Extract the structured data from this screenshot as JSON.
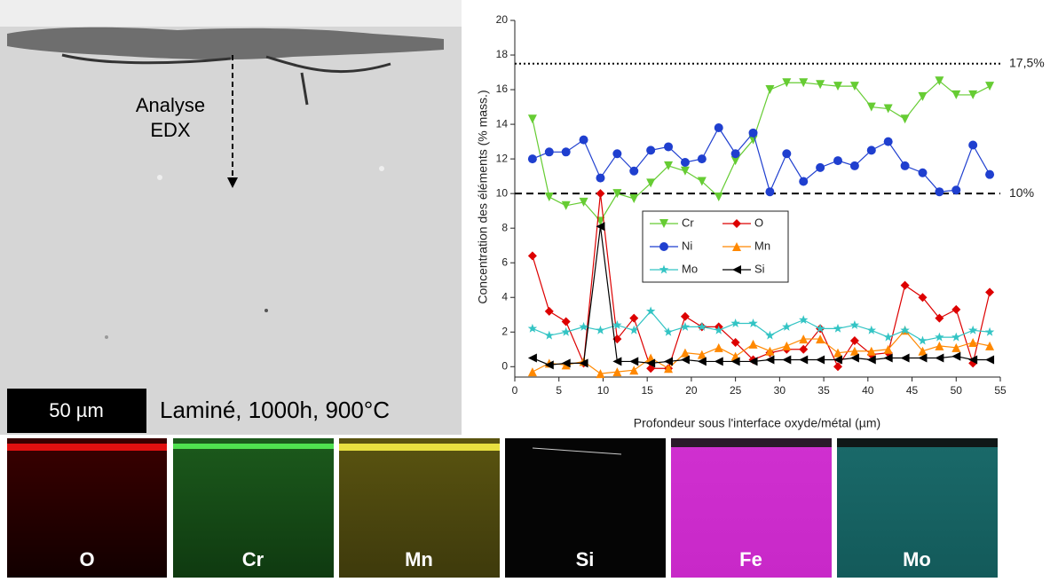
{
  "image": {
    "annotation": [
      "Analyse",
      "EDX"
    ],
    "scale_bar": "50 µm",
    "caption": "Laminé, 1000h, 900°C"
  },
  "maps": [
    "O",
    "Cr",
    "Mn",
    "Si",
    "Fe",
    "Mo"
  ],
  "chart_data": {
    "type": "line",
    "xlabel": "Profondeur sous l'interface oxyde/métal (µm)",
    "ylabel": "Concentration des éléments (% mass.)",
    "x": [
      2,
      3.9,
      5.8,
      7.8,
      9.7,
      11.6,
      13.5,
      15.4,
      17.4,
      19.3,
      21.2,
      23.1,
      25,
      27,
      28.9,
      30.8,
      32.7,
      34.6,
      36.6,
      38.5,
      40.4,
      42.3,
      44.2,
      46.2,
      48.1,
      50,
      51.9,
      53.8
    ],
    "series": [
      {
        "name": "Cr",
        "color": "#66cc33",
        "marker": "triangle-down",
        "values": [
          14.3,
          9.8,
          9.3,
          9.5,
          8.4,
          10,
          9.7,
          10.6,
          11.6,
          11.3,
          10.7,
          9.8,
          11.9,
          13.1,
          16,
          16.4,
          16.4,
          16.3,
          16.2,
          16.2,
          15,
          14.9,
          14.3,
          15.6,
          16.5,
          15.7,
          15.7,
          16.2
        ]
      },
      {
        "name": "O",
        "color": "#dd0000",
        "marker": "diamond",
        "values": [
          6.4,
          3.2,
          2.6,
          0.2,
          10,
          1.6,
          2.8,
          -0.1,
          -0.1,
          2.9,
          2.3,
          2.3,
          1.4,
          0.4,
          0.8,
          1,
          1,
          2.2,
          0,
          1.5,
          0.7,
          0.8,
          4.7,
          4,
          2.8,
          3.3,
          0.2,
          4.3
        ]
      },
      {
        "name": "Ni",
        "color": "#1f3fcf",
        "marker": "circle",
        "values": [
          12,
          12.4,
          12.4,
          13.1,
          10.9,
          12.3,
          11.3,
          12.5,
          12.7,
          11.8,
          12,
          13.8,
          12.3,
          13.5,
          10.1,
          12.3,
          10.7,
          11.5,
          11.9,
          11.6,
          12.5,
          13,
          11.6,
          11.2,
          10.1,
          10.2,
          12.8,
          11.1
        ]
      },
      {
        "name": "Mn",
        "color": "#ff8800",
        "marker": "triangle-up",
        "values": [
          -0.3,
          0.2,
          0.1,
          0.3,
          -0.4,
          -0.3,
          -0.2,
          0.5,
          -0.1,
          0.8,
          0.7,
          1.1,
          0.6,
          1.3,
          0.9,
          1.2,
          1.6,
          1.6,
          0.8,
          0.9,
          0.9,
          1,
          2.1,
          0.9,
          1.2,
          1.1,
          1.4,
          1.2
        ]
      },
      {
        "name": "Mo",
        "color": "#33c4c4",
        "marker": "star",
        "values": [
          2.2,
          1.8,
          2,
          2.3,
          2.1,
          2.4,
          2.1,
          3.2,
          2,
          2.3,
          2.3,
          2.1,
          2.5,
          2.5,
          1.8,
          2.3,
          2.7,
          2.2,
          2.2,
          2.4,
          2.1,
          1.7,
          2.1,
          1.5,
          1.7,
          1.7,
          2.1,
          2
        ]
      },
      {
        "name": "Si",
        "color": "#000000",
        "marker": "triangle-left",
        "values": [
          0.5,
          0.1,
          0.2,
          0.2,
          8.1,
          0.3,
          0.3,
          0.2,
          0.3,
          0.4,
          0.3,
          0.3,
          0.3,
          0.3,
          0.4,
          0.4,
          0.4,
          0.4,
          0.4,
          0.5,
          0.4,
          0.5,
          0.5,
          0.5,
          0.5,
          0.6,
          0.4,
          0.4
        ]
      }
    ],
    "reference_lines": [
      {
        "value": 17.5,
        "label": "17,5%",
        "style": "dotted"
      },
      {
        "value": 10,
        "label": "10%",
        "style": "dashed"
      }
    ],
    "xlim": [
      0,
      55
    ],
    "xticks": [
      0,
      5,
      10,
      15,
      20,
      25,
      30,
      35,
      40,
      45,
      50,
      55
    ],
    "ylim": [
      -0.6,
      20
    ],
    "yticks": [
      0,
      2,
      4,
      6,
      8,
      10,
      12,
      14,
      16,
      18,
      20
    ],
    "legend": "center"
  }
}
